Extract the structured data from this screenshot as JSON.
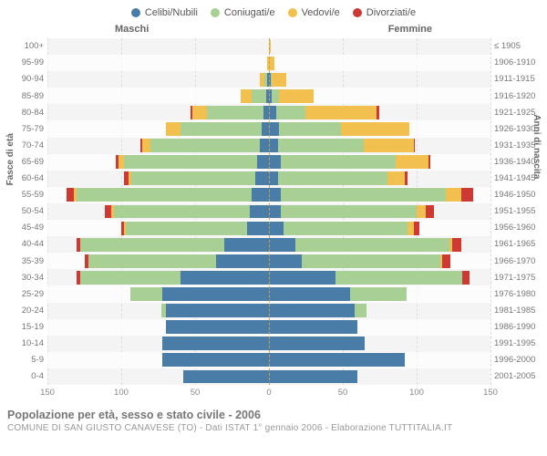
{
  "legend": [
    {
      "label": "Celibi/Nubili",
      "color": "#4a7ca8"
    },
    {
      "label": "Coniugati/e",
      "color": "#a8cf94"
    },
    {
      "label": "Vedovi/e",
      "color": "#f2c04f"
    },
    {
      "label": "Divorziati/e",
      "color": "#cc3a33"
    }
  ],
  "colHeaders": {
    "male": "Maschi",
    "female": "Femmine"
  },
  "yTitleLeft": "Fasce di età",
  "yTitleRight": "Anni di nascita",
  "axis": {
    "max": 150,
    "ticks": [
      150,
      100,
      50,
      0,
      50,
      100,
      150
    ]
  },
  "plotStyle": {
    "background": "#f4f4f4",
    "altRowBackground": "rgba(255,255,255,0.7)",
    "gridColor": "#dddddd",
    "centerLineColor": "#c8a050"
  },
  "caption": {
    "title": "Popolazione per età, sesso e stato civile - 2006",
    "sub": "COMUNE DI SAN GIUSTO CANAVESE (TO) - Dati ISTAT 1° gennaio 2006 - Elaborazione TUTTITALIA.IT"
  },
  "rows": [
    {
      "ageLabel": "100+",
      "birthLabel": "≤ 1905",
      "m": {
        "cel": 0,
        "con": 0,
        "ved": 0,
        "div": 0
      },
      "f": {
        "cel": 0,
        "con": 0,
        "ved": 1,
        "div": 0
      }
    },
    {
      "ageLabel": "95-99",
      "birthLabel": "1906-1910",
      "m": {
        "cel": 0,
        "con": 0,
        "ved": 1,
        "div": 0
      },
      "f": {
        "cel": 0,
        "con": 0,
        "ved": 4,
        "div": 0
      }
    },
    {
      "ageLabel": "90-94",
      "birthLabel": "1911-1915",
      "m": {
        "cel": 1,
        "con": 2,
        "ved": 3,
        "div": 0
      },
      "f": {
        "cel": 1,
        "con": 1,
        "ved": 10,
        "div": 0
      }
    },
    {
      "ageLabel": "85-89",
      "birthLabel": "1916-1920",
      "m": {
        "cel": 2,
        "con": 10,
        "ved": 7,
        "div": 0
      },
      "f": {
        "cel": 2,
        "con": 5,
        "ved": 23,
        "div": 0
      }
    },
    {
      "ageLabel": "80-84",
      "birthLabel": "1921-1925",
      "m": {
        "cel": 4,
        "con": 38,
        "ved": 10,
        "div": 1
      },
      "f": {
        "cel": 5,
        "con": 20,
        "ved": 48,
        "div": 2
      }
    },
    {
      "ageLabel": "75-79",
      "birthLabel": "1926-1930",
      "m": {
        "cel": 5,
        "con": 55,
        "ved": 10,
        "div": 0
      },
      "f": {
        "cel": 7,
        "con": 42,
        "ved": 46,
        "div": 0
      }
    },
    {
      "ageLabel": "70-74",
      "birthLabel": "1931-1935",
      "m": {
        "cel": 6,
        "con": 74,
        "ved": 6,
        "div": 1
      },
      "f": {
        "cel": 6,
        "con": 58,
        "ved": 34,
        "div": 1
      }
    },
    {
      "ageLabel": "65-69",
      "birthLabel": "1936-1940",
      "m": {
        "cel": 8,
        "con": 90,
        "ved": 4,
        "div": 2
      },
      "f": {
        "cel": 8,
        "con": 78,
        "ved": 22,
        "div": 1
      }
    },
    {
      "ageLabel": "60-64",
      "birthLabel": "1941-1945",
      "m": {
        "cel": 9,
        "con": 84,
        "ved": 2,
        "div": 3
      },
      "f": {
        "cel": 6,
        "con": 74,
        "ved": 12,
        "div": 2
      }
    },
    {
      "ageLabel": "55-59",
      "birthLabel": "1946-1950",
      "m": {
        "cel": 12,
        "con": 118,
        "ved": 2,
        "div": 5
      },
      "f": {
        "cel": 8,
        "con": 112,
        "ved": 10,
        "div": 8
      }
    },
    {
      "ageLabel": "50-54",
      "birthLabel": "1951-1955",
      "m": {
        "cel": 13,
        "con": 92,
        "ved": 2,
        "div": 4
      },
      "f": {
        "cel": 8,
        "con": 92,
        "ved": 6,
        "div": 6
      }
    },
    {
      "ageLabel": "45-49",
      "birthLabel": "1956-1960",
      "m": {
        "cel": 15,
        "con": 82,
        "ved": 1,
        "div": 2
      },
      "f": {
        "cel": 10,
        "con": 84,
        "ved": 4,
        "div": 4
      }
    },
    {
      "ageLabel": "40-44",
      "birthLabel": "1961-1965",
      "m": {
        "cel": 30,
        "con": 98,
        "ved": 0,
        "div": 2
      },
      "f": {
        "cel": 18,
        "con": 104,
        "ved": 2,
        "div": 6
      }
    },
    {
      "ageLabel": "35-39",
      "birthLabel": "1966-1970",
      "m": {
        "cel": 36,
        "con": 86,
        "ved": 0,
        "div": 3
      },
      "f": {
        "cel": 22,
        "con": 94,
        "ved": 1,
        "div": 6
      }
    },
    {
      "ageLabel": "30-34",
      "birthLabel": "1971-1975",
      "m": {
        "cel": 60,
        "con": 68,
        "ved": 0,
        "div": 2
      },
      "f": {
        "cel": 45,
        "con": 86,
        "ved": 0,
        "div": 5
      }
    },
    {
      "ageLabel": "25-29",
      "birthLabel": "1976-1980",
      "m": {
        "cel": 72,
        "con": 22,
        "ved": 0,
        "div": 0
      },
      "f": {
        "cel": 55,
        "con": 38,
        "ved": 0,
        "div": 0
      }
    },
    {
      "ageLabel": "20-24",
      "birthLabel": "1981-1985",
      "m": {
        "cel": 70,
        "con": 3,
        "ved": 0,
        "div": 0
      },
      "f": {
        "cel": 58,
        "con": 8,
        "ved": 0,
        "div": 0
      }
    },
    {
      "ageLabel": "15-19",
      "birthLabel": "1986-1990",
      "m": {
        "cel": 70,
        "con": 0,
        "ved": 0,
        "div": 0
      },
      "f": {
        "cel": 60,
        "con": 0,
        "ved": 0,
        "div": 0
      }
    },
    {
      "ageLabel": "10-14",
      "birthLabel": "1991-1995",
      "m": {
        "cel": 72,
        "con": 0,
        "ved": 0,
        "div": 0
      },
      "f": {
        "cel": 65,
        "con": 0,
        "ved": 0,
        "div": 0
      }
    },
    {
      "ageLabel": "5-9",
      "birthLabel": "1996-2000",
      "m": {
        "cel": 72,
        "con": 0,
        "ved": 0,
        "div": 0
      },
      "f": {
        "cel": 92,
        "con": 0,
        "ved": 0,
        "div": 0
      }
    },
    {
      "ageLabel": "0-4",
      "birthLabel": "2001-2005",
      "m": {
        "cel": 58,
        "con": 0,
        "ved": 0,
        "div": 0
      },
      "f": {
        "cel": 60,
        "con": 0,
        "ved": 0,
        "div": 0
      }
    }
  ]
}
